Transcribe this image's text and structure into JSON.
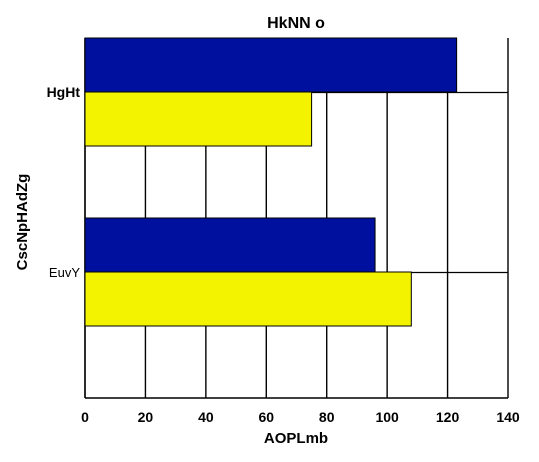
{
  "chart_data": {
    "type": "bar",
    "orientation": "horizontal",
    "title": "HkNN o",
    "xlabel": "AOPLmb",
    "ylabel": "CscNpHAdZg",
    "categories": [
      "HgHt",
      "EuvY"
    ],
    "series": [
      {
        "color": "#00109e",
        "values": [
          123,
          96
        ]
      },
      {
        "color": "#f3f300",
        "values": [
          75,
          108
        ]
      }
    ],
    "xlim": [
      0,
      140
    ],
    "xticks": [
      "0",
      "20",
      "40",
      "60",
      "80",
      "100",
      "120",
      "140"
    ],
    "grid": true
  }
}
